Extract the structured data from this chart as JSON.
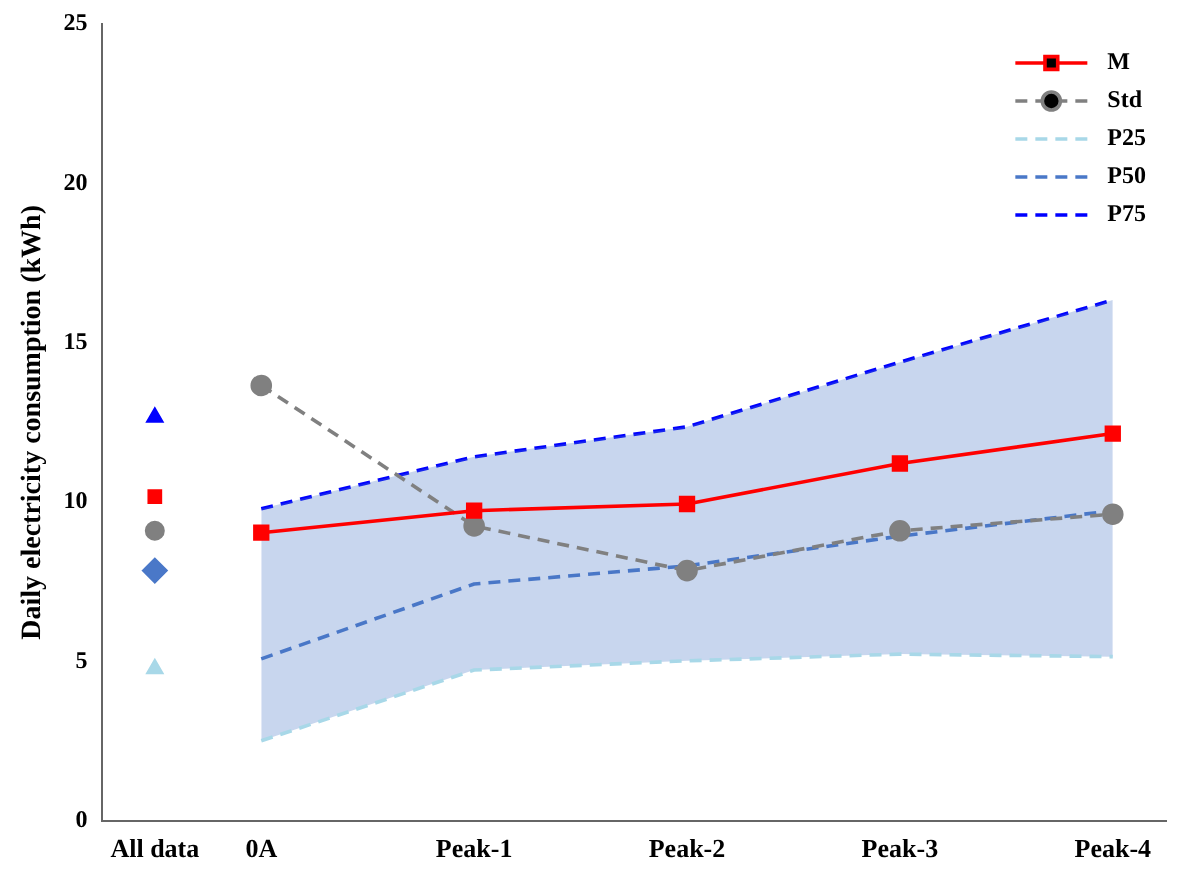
{
  "chart_data": {
    "type": "line",
    "ylabel": "Daily electricity consumption (kWh)",
    "categories": [
      "All data",
      "0A",
      null,
      "Peak-1",
      null,
      "Peak-2",
      null,
      "Peak-3",
      null,
      "Peak-4"
    ],
    "ylim": [
      0,
      25
    ],
    "yticks": [
      0,
      5,
      10,
      15,
      20,
      25
    ],
    "grid": false,
    "legend": "top right",
    "series": [
      {
        "name": "M",
        "color": "#ff0000",
        "marker": "square",
        "line_style": "solid",
        "values": [
          null,
          9.04,
          null,
          9.73,
          null,
          9.94,
          null,
          11.21,
          null,
          12.15
        ]
      },
      {
        "name": "Std",
        "color": "#808080",
        "marker": "circle",
        "line_style": "dashed",
        "values": [
          null,
          13.66,
          null,
          9.25,
          null,
          7.85,
          null,
          9.1,
          null,
          9.62
        ]
      },
      {
        "name": "P25",
        "color": "#a8d8e8",
        "marker": "none",
        "line_style": "dashed",
        "values": [
          null,
          2.51,
          null,
          4.73,
          null,
          5.02,
          null,
          5.23,
          null,
          5.15
        ]
      },
      {
        "name": "P50",
        "color": "#4a78c8",
        "marker": "none",
        "line_style": "dashed",
        "values": [
          null,
          5.08,
          null,
          7.43,
          null,
          8.0,
          null,
          8.93,
          null,
          9.73
        ],
        "lower": [
          null,
          2.51,
          null,
          4.73,
          null,
          5.02,
          null,
          5.23,
          null,
          5.15
        ],
        "upper": [
          null,
          9.79,
          null,
          11.42,
          null,
          12.36,
          null,
          14.39,
          null,
          16.34
        ]
      },
      {
        "name": "P75",
        "color": "#0000ff",
        "marker": "none",
        "line_style": "dashed",
        "values": [
          null,
          9.79,
          null,
          11.42,
          null,
          12.36,
          null,
          14.39,
          null,
          16.34
        ]
      },
      {
        "type": "scatter",
        "color": "#ff0000",
        "marker": "square",
        "values": [
          10.17,
          null,
          null,
          null,
          null,
          null,
          null,
          null,
          null,
          null
        ]
      },
      {
        "type": "scatter",
        "color": "#808080",
        "marker": "circle",
        "values": [
          9.1,
          null,
          null,
          null,
          null,
          null,
          null,
          null,
          null,
          null
        ]
      },
      {
        "type": "scatter",
        "color": "#a8d8e8",
        "marker": "triangle",
        "values": [
          4.77,
          null,
          null,
          null,
          null,
          null,
          null,
          null,
          null,
          null
        ]
      },
      {
        "type": "scatter",
        "color": "#4a78c8",
        "marker": "diamond",
        "values": [
          7.85,
          null,
          null,
          null,
          null,
          null,
          null,
          null,
          null,
          null
        ]
      },
      {
        "type": "scatter",
        "color": "#0000ff",
        "marker": "triangle",
        "values": [
          12.66,
          null,
          null,
          null,
          null,
          null,
          null,
          null,
          null,
          null
        ]
      }
    ]
  }
}
